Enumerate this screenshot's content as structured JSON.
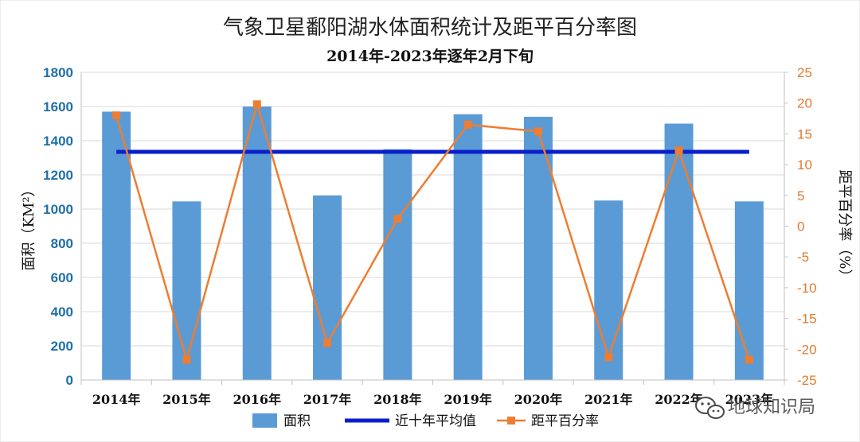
{
  "chart_data": {
    "type": "bar",
    "title": "气象卫星鄱阳湖水体面积统计及距平百分率图",
    "subtitle": "2014年-2023年逐年2月下旬",
    "categories": [
      "2014年",
      "2015年",
      "2016年",
      "2017年",
      "2018年",
      "2019年",
      "2020年",
      "2021年",
      "2022年",
      "2023年"
    ],
    "series": [
      {
        "name": "面积",
        "type": "bar",
        "axis": "left",
        "color": "#5b9bd5",
        "values": [
          1570,
          1045,
          1600,
          1080,
          1350,
          1555,
          1540,
          1050,
          1500,
          1045
        ]
      },
      {
        "name": "近十年平均值",
        "type": "line",
        "axis": "left",
        "color": "#0a1fcc",
        "values": [
          1335,
          1335,
          1335,
          1335,
          1335,
          1335,
          1335,
          1335,
          1335,
          1335
        ]
      },
      {
        "name": "距平百分率",
        "type": "line",
        "axis": "right",
        "color": "#ed7d31",
        "values": [
          18,
          -21.7,
          19.8,
          -19,
          1.2,
          16.5,
          15.4,
          -21.3,
          12.3,
          -21.7
        ]
      }
    ],
    "ylabel": "面积（KM²）",
    "ylim": [
      0,
      1800
    ],
    "yticks": [
      "0",
      "200",
      "400",
      "600",
      "800",
      "1000",
      "1200",
      "1400",
      "1600",
      "1800"
    ],
    "y2label": "距平百分率（%）",
    "y2lim": [
      -25,
      25
    ],
    "y2ticks": [
      "-25",
      "-20",
      "-15",
      "-10",
      "-5",
      "0",
      "5",
      "10",
      "15",
      "20",
      "25"
    ],
    "grid": true,
    "legend_position": "bottom"
  },
  "watermark": {
    "text": "地球知识局",
    "icon": "wechat-icon"
  }
}
